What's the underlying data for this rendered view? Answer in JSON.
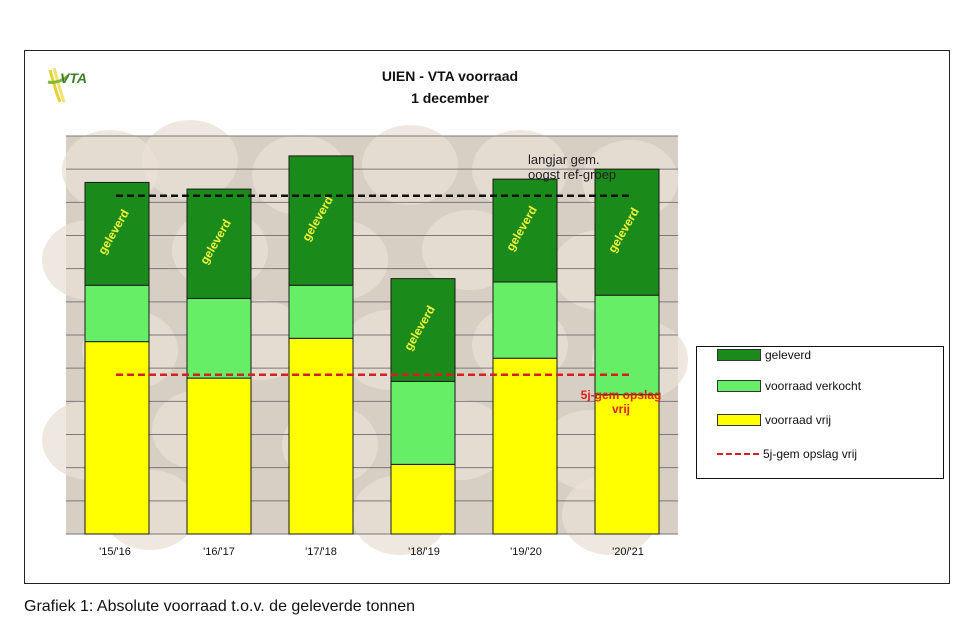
{
  "title_line1": "UIEN - VTA voorraad",
  "title_line2": "1 december",
  "logo_text": "VTA",
  "caption": "Grafiek 1: Absolute voorraad t.o.v. de geleverde tonnen",
  "chart_data": {
    "type": "bar",
    "stacked": true,
    "categories": [
      "'15/'16",
      "'16/'17",
      "'17/'18",
      "'18/'19",
      "'19/'20",
      "'20/'21"
    ],
    "series": [
      {
        "name": "voorraad vrij",
        "color": "#ffff00",
        "values": [
          58,
          47,
          59,
          21,
          53,
          42
        ]
      },
      {
        "name": "voorraad verkocht",
        "color": "#66ee66",
        "values": [
          17,
          24,
          16,
          25,
          23,
          30
        ]
      },
      {
        "name": "geleverd",
        "color": "#1a8a1a",
        "values": [
          31,
          33,
          39,
          31,
          31,
          38
        ]
      }
    ],
    "bar_label": "geleverd",
    "reference_lines": [
      {
        "name": "langjar gem. oogst ref-groep",
        "value": 102,
        "color": "#111111"
      },
      {
        "name": "5j-gem opslag vrij",
        "value": 48,
        "color": "#d42020"
      }
    ],
    "ylim": [
      0,
      120
    ],
    "grid": true,
    "legend_position": "right"
  },
  "legend": {
    "items": [
      {
        "label": "geleverd",
        "kind": "box",
        "color": "#1a8a1a"
      },
      {
        "label": "voorraad verkocht",
        "kind": "box",
        "color": "#66ee66"
      },
      {
        "label": "voorraad vrij",
        "kind": "box",
        "color": "#ffff00"
      },
      {
        "label": "5j-gem opslag vrij",
        "kind": "line",
        "color": "#d42020"
      }
    ]
  },
  "annotations": {
    "langjarig_line1": "langjar gem.",
    "langjarig_line2": "oogst ref-groep",
    "vijfjaar_line1": "5j-gem opslag",
    "vijfjaar_line2": "vrij"
  }
}
